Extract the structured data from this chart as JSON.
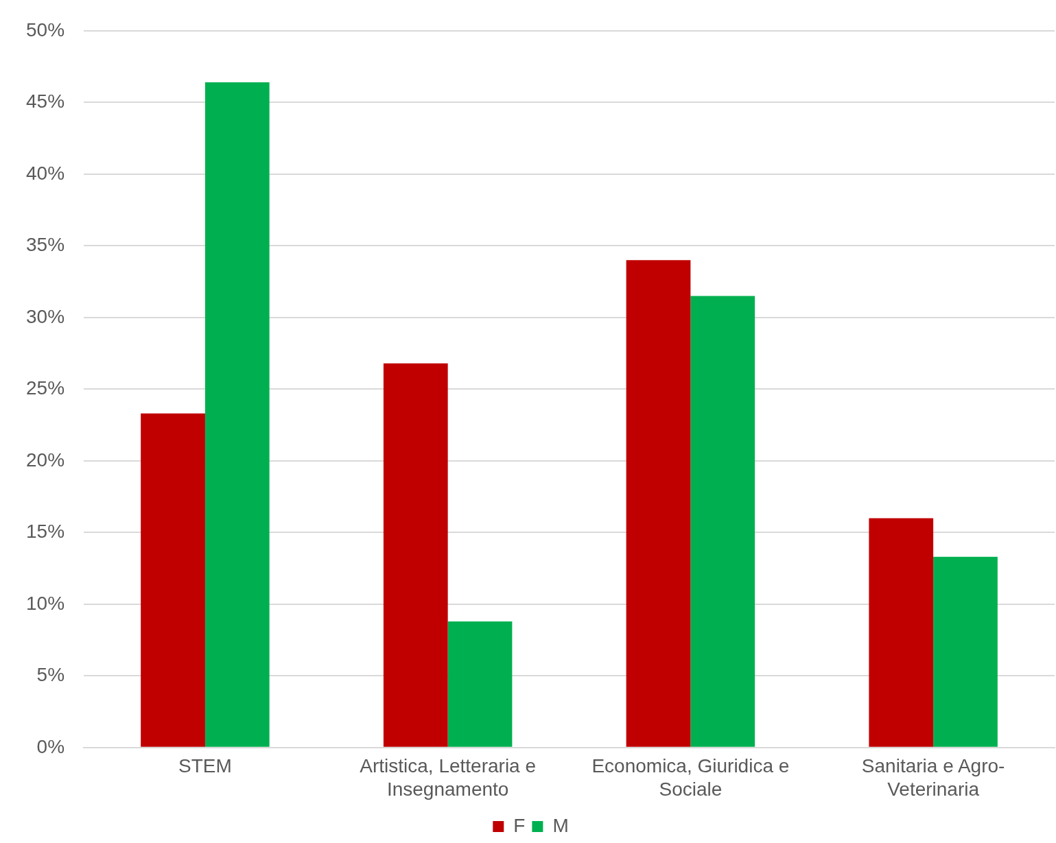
{
  "chart_data": {
    "type": "bar",
    "categories": [
      "STEM",
      "Artistica, Letteraria e Insegnamento",
      "Economica, Giuridica e Sociale",
      "Sanitaria e Agro-Veterinaria"
    ],
    "series": [
      {
        "name": "F",
        "color": "#c00000",
        "values": [
          23.3,
          26.8,
          34.0,
          16.0
        ]
      },
      {
        "name": "M",
        "color": "#00b050",
        "values": [
          46.4,
          8.8,
          31.5,
          13.3
        ]
      }
    ],
    "ylim": [
      0,
      50
    ],
    "yticks": [
      {
        "value": 0,
        "label": "0%"
      },
      {
        "value": 5,
        "label": "5%"
      },
      {
        "value": 10,
        "label": "10%"
      },
      {
        "value": 15,
        "label": "15%"
      },
      {
        "value": 20,
        "label": "20%"
      },
      {
        "value": 25,
        "label": "25%"
      },
      {
        "value": 30,
        "label": "30%"
      },
      {
        "value": 35,
        "label": "35%"
      },
      {
        "value": 40,
        "label": "40%"
      },
      {
        "value": 45,
        "label": "45%"
      },
      {
        "value": 50,
        "label": "50%"
      }
    ],
    "grid": "y",
    "legend": "bottom"
  }
}
